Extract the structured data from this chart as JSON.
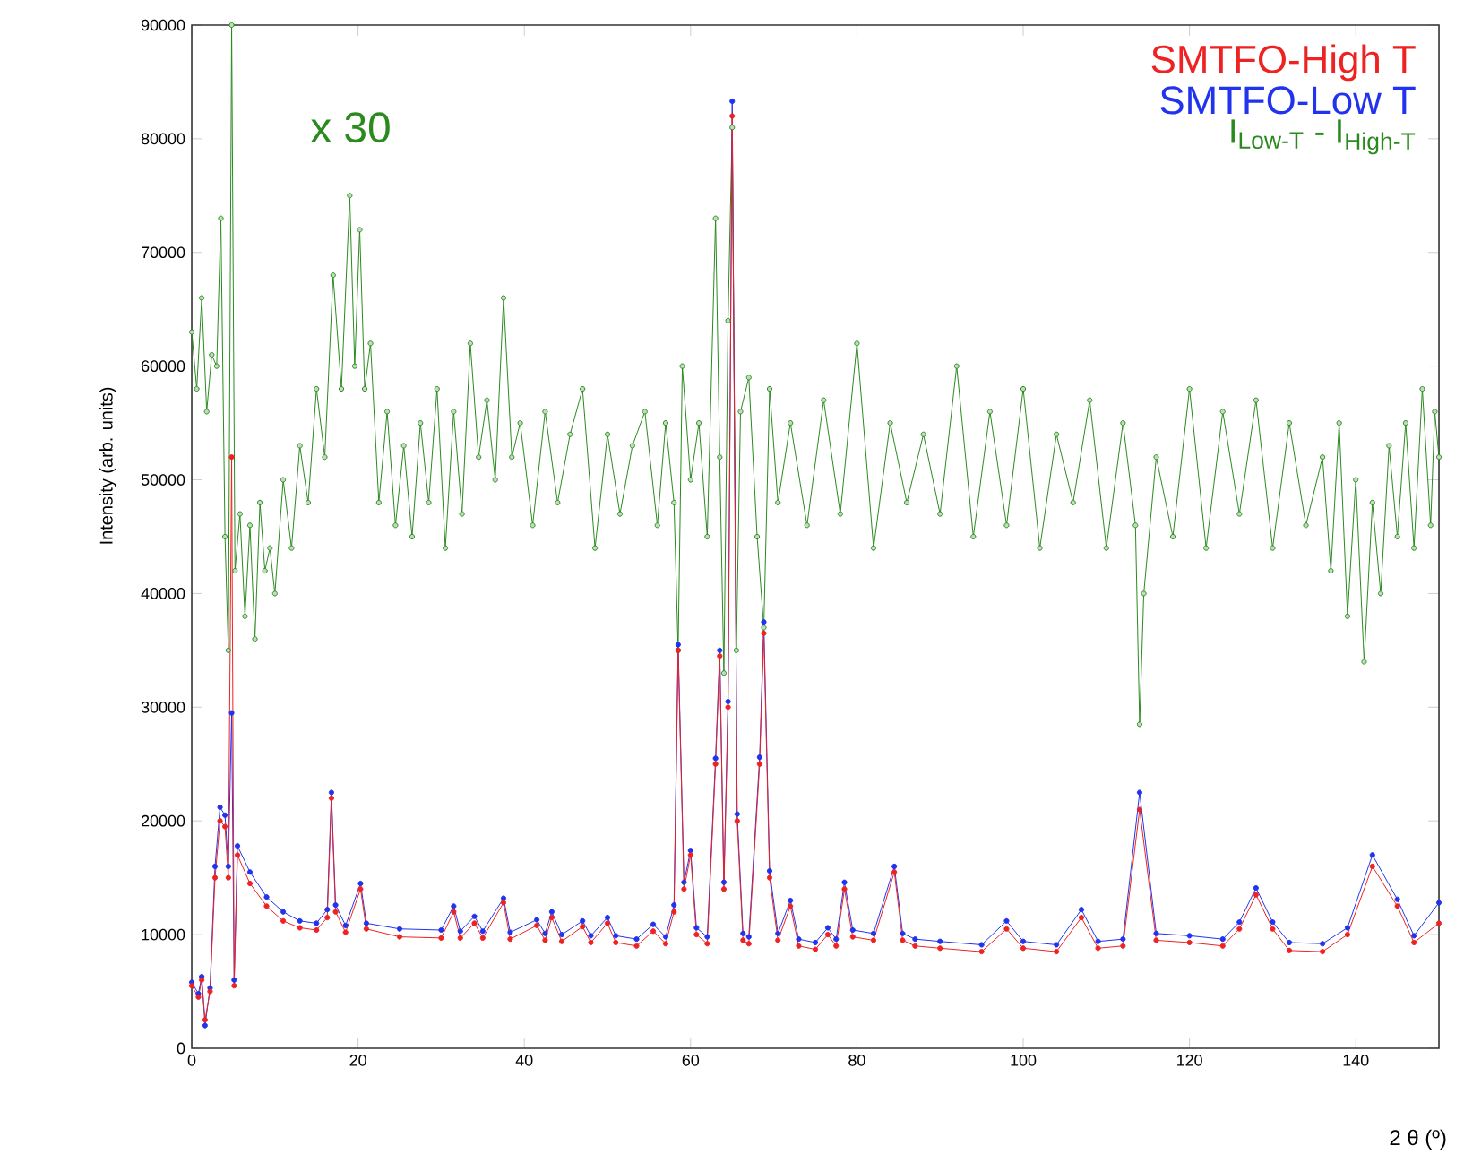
{
  "chart_data": {
    "type": "line",
    "ylabel": "Intensity (arb. units)",
    "xlabel": "2 θ (º)",
    "annotations": [
      "x 30"
    ],
    "xlim": [
      0,
      150
    ],
    "ylim": [
      0,
      90000
    ],
    "xticks": [
      0,
      20,
      40,
      60,
      80,
      100,
      120,
      140
    ],
    "yticks": [
      0,
      10000,
      20000,
      30000,
      40000,
      50000,
      60000,
      70000,
      80000,
      90000
    ],
    "marker": "circle",
    "legend": "top right",
    "grid": false,
    "series": [
      {
        "name": "SMTFO-High T",
        "color": "#ee2222",
        "x": [
          0,
          0.8,
          1.2,
          1.6,
          2.2,
          2.8,
          3.4,
          4,
          4.4,
          4.8,
          5.1,
          5.5,
          7,
          9,
          11,
          13,
          15,
          16.3,
          16.8,
          17.3,
          18.5,
          20.3,
          21,
          25,
          30,
          31.5,
          32.3,
          34,
          35,
          37.5,
          38.3,
          41.5,
          42.5,
          43.3,
          44.5,
          47,
          48,
          50,
          51,
          53.5,
          55.5,
          57,
          58,
          58.5,
          59.2,
          60,
          60.7,
          62,
          63,
          63.5,
          64,
          64.5,
          65,
          65.6,
          66.3,
          67,
          68.3,
          68.8,
          69.5,
          70.5,
          72,
          73,
          75,
          76.5,
          77.5,
          78.5,
          79.5,
          82,
          84.5,
          85.5,
          87,
          90,
          95,
          98,
          100,
          104,
          107,
          109,
          112,
          114,
          116,
          120,
          124,
          126,
          128,
          130,
          132,
          136,
          139,
          142,
          145,
          147,
          150
        ],
        "values": [
          5500,
          4500,
          6000,
          2500,
          5000,
          15000,
          20000,
          19500,
          15000,
          52000,
          5500,
          17000,
          14500,
          12500,
          11200,
          10600,
          10400,
          11500,
          22000,
          12000,
          10200,
          14000,
          10500,
          9800,
          9700,
          12000,
          9700,
          11000,
          9700,
          12800,
          9600,
          10800,
          9500,
          11500,
          9400,
          10700,
          9300,
          11000,
          9300,
          9000,
          10300,
          9200,
          12000,
          35000,
          14000,
          17000,
          10000,
          9200,
          25000,
          34500,
          14000,
          30000,
          82000,
          20000,
          9500,
          9200,
          25000,
          36500,
          15000,
          9500,
          12500,
          9000,
          8700,
          10000,
          9000,
          14000,
          9800,
          9500,
          15500,
          9500,
          9000,
          8800,
          8500,
          10500,
          8800,
          8500,
          11500,
          8800,
          9000,
          21000,
          9500,
          9300,
          9000,
          10500,
          13500,
          10500,
          8600,
          8500,
          10000,
          16000,
          12500,
          9300,
          11000
        ]
      },
      {
        "name": "SMTFO-Low T",
        "color": "#2233ee",
        "x": [
          0,
          0.8,
          1.2,
          1.6,
          2.2,
          2.8,
          3.4,
          4,
          4.4,
          4.8,
          5.1,
          5.5,
          7,
          9,
          11,
          13,
          15,
          16.3,
          16.8,
          17.3,
          18.5,
          20.3,
          21,
          25,
          30,
          31.5,
          32.3,
          34,
          35,
          37.5,
          38.3,
          41.5,
          42.5,
          43.3,
          44.5,
          47,
          48,
          50,
          51,
          53.5,
          55.5,
          57,
          58,
          58.5,
          59.2,
          60,
          60.7,
          62,
          63,
          63.5,
          64,
          64.5,
          65,
          65.6,
          66.3,
          67,
          68.3,
          68.8,
          69.5,
          70.5,
          72,
          73,
          75,
          76.5,
          77.5,
          78.5,
          79.5,
          82,
          84.5,
          85.5,
          87,
          90,
          95,
          98,
          100,
          104,
          107,
          109,
          112,
          114,
          116,
          120,
          124,
          126,
          128,
          130,
          132,
          136,
          139,
          142,
          145,
          147,
          150
        ],
        "values": [
          5800,
          4800,
          6300,
          2000,
          5300,
          16000,
          21200,
          20500,
          16000,
          29500,
          6000,
          17800,
          15500,
          13300,
          12000,
          11200,
          11000,
          12200,
          22500,
          12600,
          10800,
          14500,
          11000,
          10500,
          10400,
          12500,
          10300,
          11600,
          10300,
          13200,
          10200,
          11300,
          10100,
          12000,
          10000,
          11200,
          9900,
          11500,
          9900,
          9600,
          10900,
          9800,
          12600,
          35500,
          14600,
          17400,
          10600,
          9800,
          25500,
          35000,
          14600,
          30500,
          83300,
          20600,
          10100,
          9800,
          25600,
          37500,
          15600,
          10100,
          13000,
          9600,
          9300,
          10600,
          9600,
          14600,
          10400,
          10100,
          16000,
          10100,
          9600,
          9400,
          9100,
          11200,
          9400,
          9100,
          12200,
          9400,
          9600,
          22500,
          10100,
          9900,
          9600,
          11100,
          14100,
          11100,
          9300,
          9200,
          10600,
          17000,
          13100,
          9900,
          12800
        ]
      },
      {
        "name": "I$_{Low-T}$ - I$_{High-T}$",
        "color": "#2a8a1e",
        "x": [
          0,
          0.6,
          1.2,
          1.8,
          2.4,
          3,
          3.5,
          4,
          4.4,
          4.8,
          5.2,
          5.8,
          6.4,
          7,
          7.6,
          8.2,
          8.8,
          9.4,
          10,
          11,
          12,
          13,
          14,
          15,
          16,
          17,
          18,
          19,
          19.6,
          20.2,
          20.8,
          21.5,
          22.5,
          23.5,
          24.5,
          25.5,
          26.5,
          27.5,
          28.5,
          29.5,
          30.5,
          31.5,
          32.5,
          33.5,
          34.5,
          35.5,
          36.5,
          37.5,
          38.5,
          39.5,
          41,
          42.5,
          44,
          45.5,
          47,
          48.5,
          50,
          51.5,
          53,
          54.5,
          56,
          57,
          58,
          58.5,
          59,
          60,
          61,
          62,
          63,
          63.5,
          64,
          64.5,
          65,
          65.5,
          66,
          67,
          68,
          68.8,
          69.5,
          70.5,
          72,
          74,
          76,
          78,
          80,
          82,
          84,
          86,
          88,
          90,
          92,
          94,
          96,
          98,
          100,
          102,
          104,
          106,
          108,
          110,
          112,
          113.5,
          114,
          114.5,
          116,
          118,
          120,
          122,
          124,
          126,
          128,
          130,
          132,
          134,
          136,
          137,
          138,
          139,
          140,
          141,
          142,
          143,
          144,
          145,
          146,
          147,
          148,
          149,
          149.5,
          150
        ],
        "values": [
          63000,
          58000,
          66000,
          56000,
          61000,
          60000,
          73000,
          45000,
          35000,
          90000,
          42000,
          47000,
          38000,
          46000,
          36000,
          48000,
          42000,
          44000,
          40000,
          50000,
          44000,
          53000,
          48000,
          58000,
          52000,
          68000,
          58000,
          75000,
          60000,
          72000,
          58000,
          62000,
          48000,
          56000,
          46000,
          53000,
          45000,
          55000,
          48000,
          58000,
          44000,
          56000,
          47000,
          62000,
          52000,
          57000,
          50000,
          66000,
          52000,
          55000,
          46000,
          56000,
          48000,
          54000,
          58000,
          44000,
          54000,
          47000,
          53000,
          56000,
          46000,
          55000,
          48000,
          35000,
          60000,
          50000,
          55000,
          45000,
          73000,
          52000,
          33000,
          64000,
          81000,
          35000,
          56000,
          59000,
          45000,
          37000,
          58000,
          48000,
          55000,
          46000,
          57000,
          47000,
          62000,
          44000,
          55000,
          48000,
          54000,
          47000,
          60000,
          45000,
          56000,
          46000,
          58000,
          44000,
          54000,
          48000,
          57000,
          44000,
          55000,
          46000,
          28500,
          40000,
          52000,
          45000,
          58000,
          44000,
          56000,
          47000,
          57000,
          44000,
          55000,
          46000,
          52000,
          42000,
          55000,
          38000,
          50000,
          34000,
          48000,
          40000,
          53000,
          45000,
          55000,
          44000,
          58000,
          46000,
          56000,
          52000
        ]
      }
    ]
  }
}
